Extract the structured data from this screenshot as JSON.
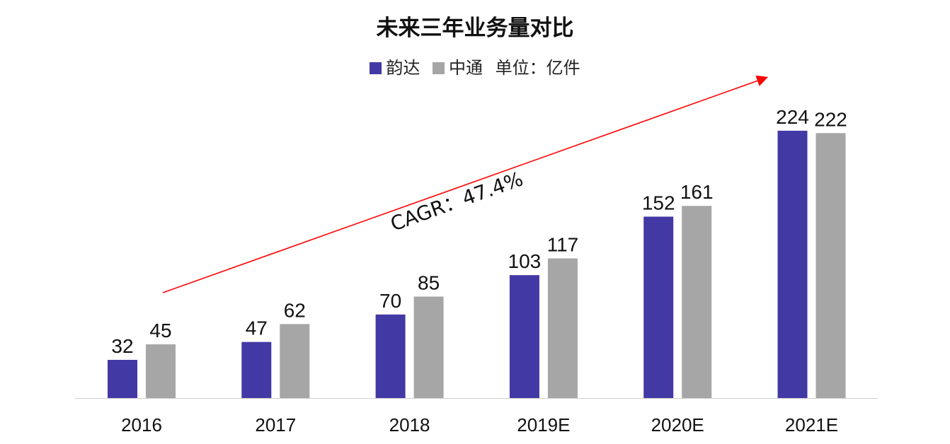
{
  "chart_data": {
    "type": "bar",
    "title": "未来三年业务量对比",
    "unit_note": "单位：亿件",
    "categories": [
      "2016",
      "2017",
      "2018",
      "2019E",
      "2020E",
      "2021E"
    ],
    "series": [
      {
        "name": "韵达",
        "color": "#4339A5",
        "values": [
          32,
          47,
          70,
          103,
          152,
          224
        ]
      },
      {
        "name": "中通",
        "color": "#A6A6A6",
        "values": [
          45,
          62,
          85,
          117,
          161,
          222
        ]
      }
    ],
    "ylim": [
      0,
      250
    ],
    "grid": false,
    "legend_placement": "top-center",
    "annotation": {
      "text": "CAGR：47.4%",
      "arrow_color": "#FF0000"
    }
  }
}
